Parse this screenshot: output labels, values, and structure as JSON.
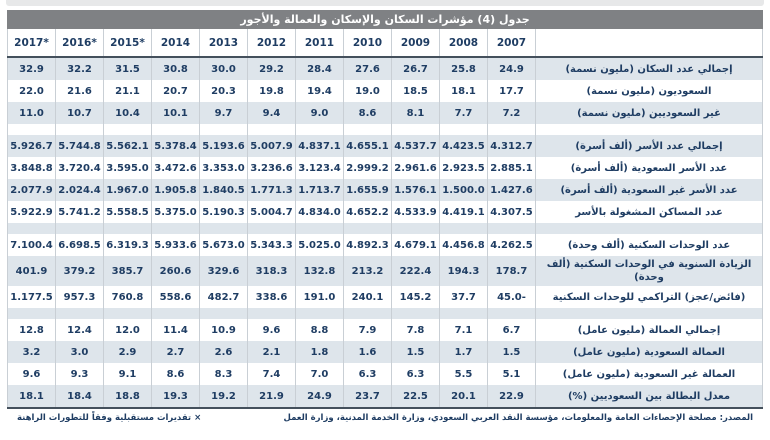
{
  "title": "جدول (4) مؤشرات السكان والإسكان والعمالة والأجور",
  "years": [
    "2017*",
    "2016*",
    "2015*",
    "2014",
    "2013",
    "2012",
    "2011",
    "2010",
    "2009",
    "2008",
    "2007"
  ],
  "sections": [
    {
      "rows": [
        {
          "label": "إجمالي عدد السكان (مليون نسمة)",
          "values": [
            "32.9",
            "32.2",
            "31.5",
            "30.8",
            "30.0",
            "29.2",
            "28.4",
            "27.6",
            "26.7",
            "25.8",
            "24.9"
          ]
        },
        {
          "label": "السعوديون (مليون نسمة)",
          "values": [
            "22.0",
            "21.6",
            "21.1",
            "20.7",
            "20.3",
            "19.8",
            "19.4",
            "19.0",
            "18.5",
            "18.1",
            "17.7"
          ]
        },
        {
          "label": "غير السعوديين (مليون نسمة)",
          "values": [
            "11.0",
            "10.7",
            "10.4",
            "10.1",
            "9.7",
            "9.4",
            "9.0",
            "8.6",
            "8.1",
            "7.7",
            "7.2"
          ]
        }
      ]
    },
    {
      "rows": [
        {
          "label": "إجمالي عدد الأسر (ألف أسرة)",
          "values": [
            "5.926.7",
            "5.744.8",
            "5.562.1",
            "5.378.4",
            "5.193.6",
            "5.007.9",
            "4.837.1",
            "4.655.1",
            "4.537.7",
            "4.423.5",
            "4.312.7"
          ]
        },
        {
          "label": "عدد الأسر السعودية (ألف أسرة)",
          "values": [
            "3.848.8",
            "3.720.4",
            "3.595.0",
            "3.472.6",
            "3.353.0",
            "3.236.6",
            "3.123.4",
            "2.999.2",
            "2.961.6",
            "2.923.5",
            "2.885.1"
          ]
        },
        {
          "label": "عدد الأسر غير السعودية (ألف أسرة)",
          "values": [
            "2.077.9",
            "2.024.4",
            "1.967.0",
            "1.905.8",
            "1.840.5",
            "1.771.3",
            "1.713.7",
            "1.655.9",
            "1.576.1",
            "1.500.0",
            "1.427.6"
          ]
        },
        {
          "label": "عدد المساكن المشغولة بالأسر",
          "values": [
            "5.922.9",
            "5.741.2",
            "5.558.5",
            "5.375.0",
            "5.190.3",
            "5.004.7",
            "4.834.0",
            "4.652.2",
            "4.533.9",
            "4.419.1",
            "4.307.5"
          ]
        }
      ]
    },
    {
      "rows": [
        {
          "label": "عدد الوحدات السكنية (ألف وحدة)",
          "values": [
            "7.100.4",
            "6.698.5",
            "6.319.3",
            "5.933.6",
            "5.673.0",
            "5.343.3",
            "5.025.0",
            "4.892.3",
            "4.679.1",
            "4.456.8",
            "4.262.5"
          ]
        },
        {
          "label": "الزيادة السنوية في الوحدات السكنية (ألف وحدة)",
          "values": [
            "401.9",
            "379.2",
            "385.7",
            "260.6",
            "329.6",
            "318.3",
            "132.8",
            "213.2",
            "222.4",
            "194.3",
            "178.7"
          ]
        },
        {
          "label": "(فائض/عجز) التراكمي للوحدات السكنية",
          "values": [
            "1.177.5",
            "957.3",
            "760.8",
            "558.6",
            "482.7",
            "338.6",
            "191.0",
            "240.1",
            "145.2",
            "37.7",
            "45.0-"
          ]
        }
      ]
    },
    {
      "rows": [
        {
          "label": "إجمالي العمالة (مليون عامل)",
          "values": [
            "12.8",
            "12.4",
            "12.0",
            "11.4",
            "10.9",
            "9.6",
            "8.8",
            "7.9",
            "7.8",
            "7.1",
            "6.7"
          ]
        },
        {
          "label": "العمالة السعودية (مليون عامل)",
          "values": [
            "3.2",
            "3.0",
            "2.9",
            "2.7",
            "2.6",
            "2.1",
            "1.8",
            "1.6",
            "1.5",
            "1.7",
            "1.5"
          ]
        },
        {
          "label": "العمالة غير السعودية (مليون عامل)",
          "values": [
            "9.6",
            "9.3",
            "9.1",
            "8.6",
            "8.3",
            "7.4",
            "7.0",
            "6.3",
            "6.3",
            "5.5",
            "5.1"
          ]
        },
        {
          "label": "معدل البطالة بين السعوديين (%)",
          "values": [
            "18.1",
            "18.4",
            "18.8",
            "19.3",
            "19.2",
            "21.9",
            "24.9",
            "23.7",
            "22.5",
            "20.1",
            "22.9"
          ]
        }
      ]
    }
  ],
  "footer": {
    "source": "المصدر: مصلحة الإحصاءات العامة والمعلومات، مؤسسة النقد العربي السعودي، وزارة الخدمة المدنية، وزارة العمل",
    "note": "× تقديرات مستقبلية وفقاً للتطورات الراهنة"
  },
  "colors": {
    "header_bar": "#7f8184",
    "title_text": "#ffffff",
    "row_shaded": "#dee5eb",
    "text": "#1f3d63",
    "grid_line": "#c9cfd5",
    "rule": "#44505c"
  }
}
